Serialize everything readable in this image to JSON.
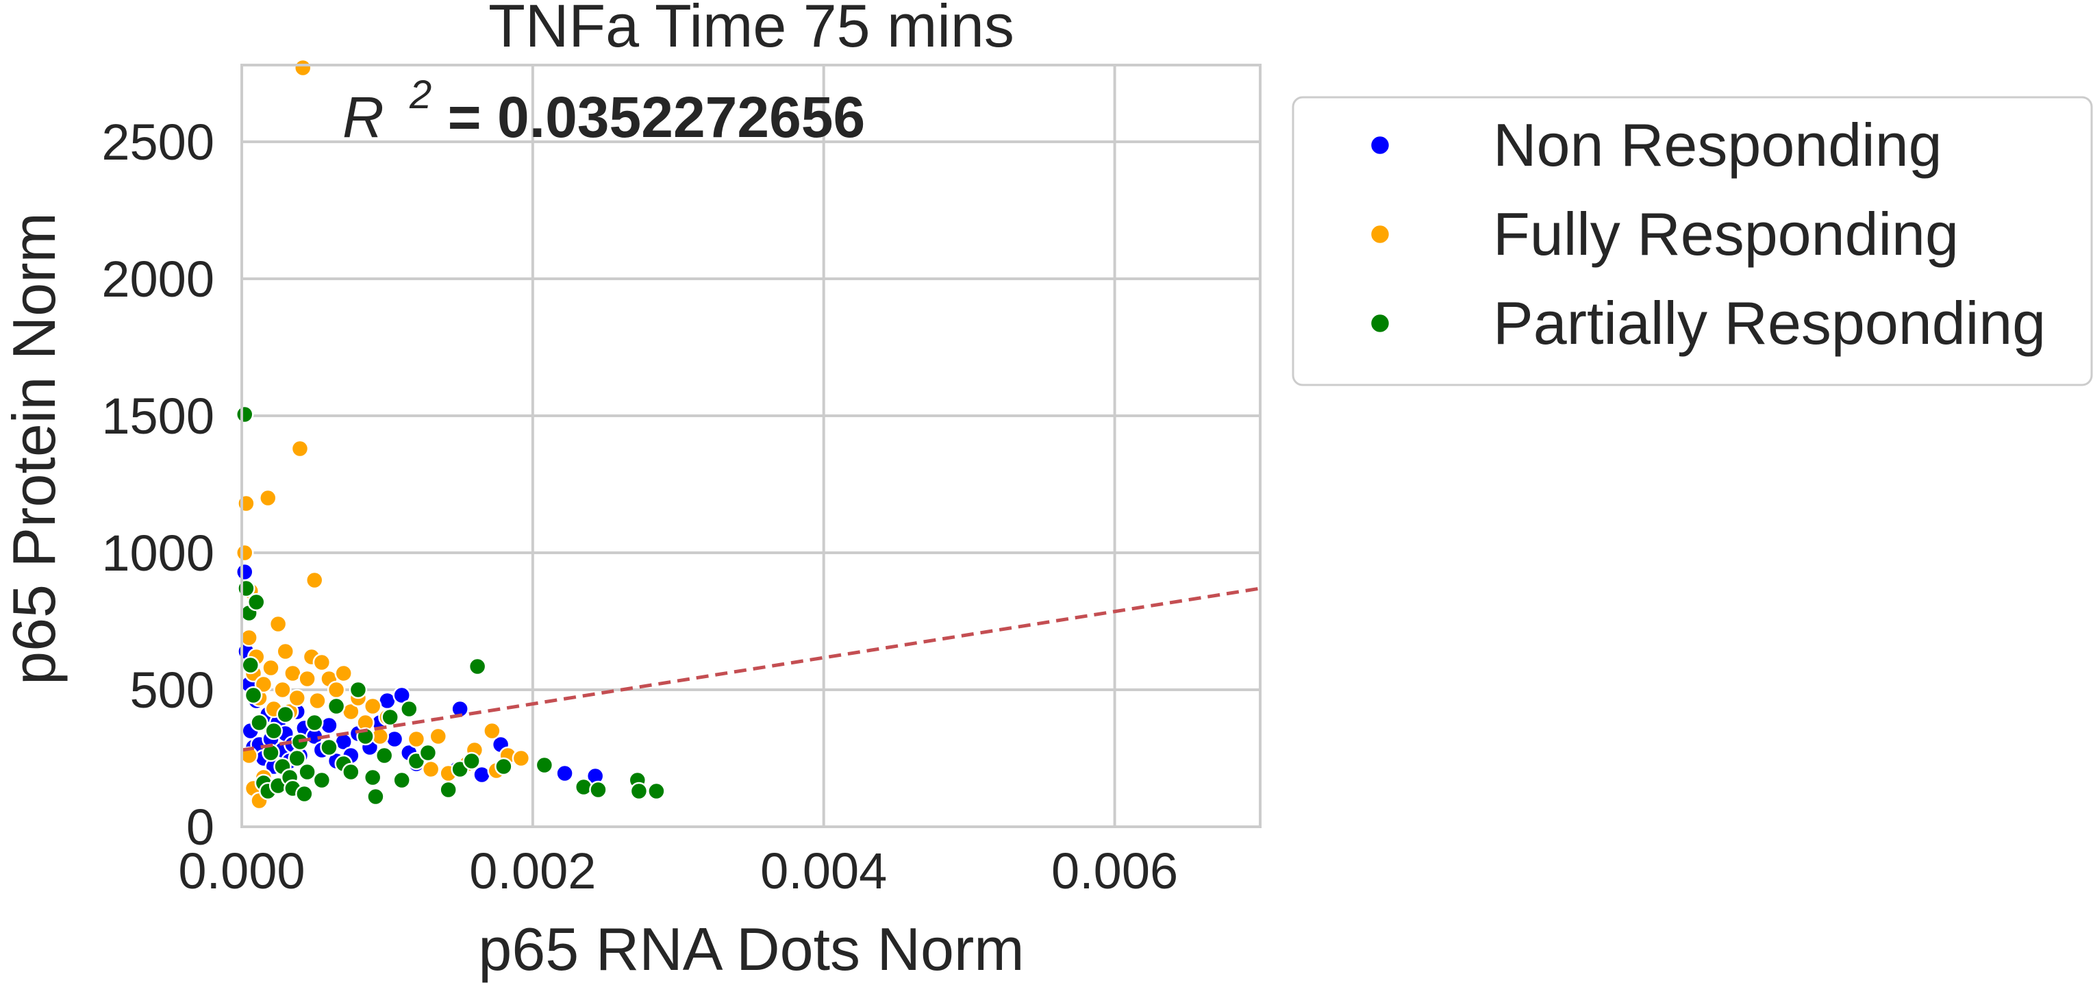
{
  "chart_data": {
    "type": "scatter",
    "title": "TNFa Time 75 mins",
    "annotation": {
      "prefix": "R",
      "superscript": "2",
      "suffix": " = 0.0352272656"
    },
    "xlabel": "p65 RNA Dots Norm",
    "ylabel": "p65 Protein Norm",
    "xlim": [
      0,
      0.007
    ],
    "ylim": [
      0,
      2780
    ],
    "xticks": [
      0,
      0.002,
      0.004,
      0.006
    ],
    "xtick_labels": [
      "0.000",
      "0.002",
      "0.004",
      "0.006"
    ],
    "yticks": [
      0,
      500,
      1000,
      1500,
      2000,
      2500
    ],
    "ytick_labels": [
      "0",
      "500",
      "1000",
      "1500",
      "2000",
      "2500"
    ],
    "grid": true,
    "legend_position": "outside-right",
    "regression_line": {
      "style": "dashed",
      "color": "#c44e52",
      "points": [
        [
          0,
          280
        ],
        [
          0.007,
          870
        ]
      ]
    },
    "series": [
      {
        "name": "Non Responding",
        "color": "#0000ff",
        "points": [
          [
            2e-05,
            930
          ],
          [
            3e-05,
            640
          ],
          [
            5e-05,
            520
          ],
          [
            6e-05,
            350
          ],
          [
            8e-05,
            290
          ],
          [
            0.0001,
            460
          ],
          [
            0.00012,
            300
          ],
          [
            0.00015,
            250
          ],
          [
            0.00018,
            410
          ],
          [
            0.0002,
            320
          ],
          [
            0.00022,
            220
          ],
          [
            0.00025,
            380
          ],
          [
            0.00028,
            280
          ],
          [
            0.0003,
            340
          ],
          [
            0.00033,
            240
          ],
          [
            0.00035,
            300
          ],
          [
            0.00038,
            420
          ],
          [
            0.0004,
            260
          ],
          [
            0.00043,
            360
          ],
          [
            0.00045,
            200
          ],
          [
            0.0005,
            330
          ],
          [
            0.00055,
            280
          ],
          [
            0.0006,
            370
          ],
          [
            0.00065,
            240
          ],
          [
            0.0007,
            310
          ],
          [
            0.00075,
            260
          ],
          [
            0.0008,
            340
          ],
          [
            0.00088,
            290
          ],
          [
            0.00095,
            380
          ],
          [
            0.001,
            460
          ],
          [
            0.00105,
            320
          ],
          [
            0.0011,
            480
          ],
          [
            0.00115,
            270
          ],
          [
            0.0012,
            230
          ],
          [
            0.0015,
            430
          ],
          [
            0.00148,
            210
          ],
          [
            0.00165,
            190
          ],
          [
            0.00178,
            300
          ],
          [
            0.00222,
            195
          ],
          [
            0.00243,
            185
          ]
        ]
      },
      {
        "name": "Fully Responding",
        "color": "#ffa500",
        "points": [
          [
            2e-05,
            1000
          ],
          [
            3e-05,
            1180
          ],
          [
            4e-05,
            780
          ],
          [
            5e-05,
            690
          ],
          [
            6e-05,
            860
          ],
          [
            8e-05,
            560
          ],
          [
            0.0001,
            620
          ],
          [
            0.00012,
            470
          ],
          [
            0.00015,
            520
          ],
          [
            0.00018,
            1200
          ],
          [
            0.0002,
            580
          ],
          [
            0.00022,
            430
          ],
          [
            0.00025,
            740
          ],
          [
            0.00028,
            500
          ],
          [
            0.0003,
            640
          ],
          [
            0.00033,
            420
          ],
          [
            0.00035,
            560
          ],
          [
            0.00038,
            470
          ],
          [
            0.0004,
            1380
          ],
          [
            0.00042,
            2770
          ],
          [
            0.00045,
            540
          ],
          [
            0.00048,
            620
          ],
          [
            0.0005,
            900
          ],
          [
            0.00052,
            460
          ],
          [
            0.00055,
            600
          ],
          [
            0.0006,
            540
          ],
          [
            0.00065,
            500
          ],
          [
            0.0007,
            560
          ],
          [
            0.00075,
            420
          ],
          [
            0.0008,
            470
          ],
          [
            0.00085,
            380
          ],
          [
            0.0009,
            440
          ],
          [
            0.00095,
            330
          ],
          [
            0.001,
            400
          ],
          [
            5e-05,
            260
          ],
          [
            8e-05,
            140
          ],
          [
            0.00012,
            95
          ],
          [
            0.00015,
            180
          ],
          [
            0.0012,
            320
          ],
          [
            0.0013,
            210
          ],
          [
            0.00135,
            330
          ],
          [
            0.00142,
            195
          ],
          [
            0.00155,
            230
          ],
          [
            0.0016,
            280
          ],
          [
            0.00172,
            350
          ],
          [
            0.00175,
            205
          ],
          [
            0.00183,
            260
          ],
          [
            0.00192,
            250
          ]
        ]
      },
      {
        "name": "Partially Responding",
        "color": "#008000",
        "points": [
          [
            2e-05,
            1505
          ],
          [
            3e-05,
            870
          ],
          [
            5e-05,
            780
          ],
          [
            6e-05,
            590
          ],
          [
            8e-05,
            480
          ],
          [
            0.0001,
            820
          ],
          [
            0.00012,
            380
          ],
          [
            0.00015,
            160
          ],
          [
            0.00018,
            130
          ],
          [
            0.0002,
            270
          ],
          [
            0.00022,
            350
          ],
          [
            0.00025,
            150
          ],
          [
            0.00028,
            220
          ],
          [
            0.0003,
            410
          ],
          [
            0.00033,
            180
          ],
          [
            0.00035,
            140
          ],
          [
            0.00038,
            250
          ],
          [
            0.0004,
            310
          ],
          [
            0.00043,
            120
          ],
          [
            0.00045,
            200
          ],
          [
            0.0005,
            380
          ],
          [
            0.00055,
            170
          ],
          [
            0.0006,
            290
          ],
          [
            0.00065,
            440
          ],
          [
            0.0007,
            230
          ],
          [
            0.00075,
            200
          ],
          [
            0.0008,
            500
          ],
          [
            0.00085,
            330
          ],
          [
            0.0009,
            180
          ],
          [
            0.00092,
            110
          ],
          [
            0.00098,
            260
          ],
          [
            0.00102,
            400
          ],
          [
            0.0011,
            170
          ],
          [
            0.00115,
            430
          ],
          [
            0.0012,
            240
          ],
          [
            0.00128,
            270
          ],
          [
            0.00142,
            135
          ],
          [
            0.0015,
            210
          ],
          [
            0.00158,
            240
          ],
          [
            0.00162,
            585
          ],
          [
            0.0018,
            220
          ],
          [
            0.00208,
            225
          ],
          [
            0.00235,
            145
          ],
          [
            0.00245,
            135
          ],
          [
            0.00272,
            170
          ],
          [
            0.00273,
            130
          ],
          [
            0.00285,
            130
          ]
        ]
      }
    ]
  }
}
